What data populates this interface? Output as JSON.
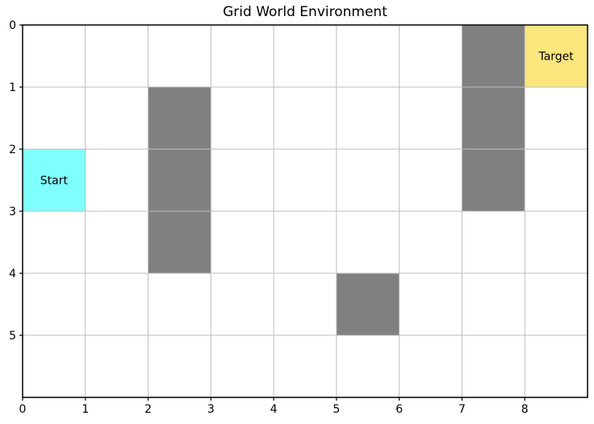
{
  "chart_data": {
    "type": "heatmap",
    "title": "Grid World Environment",
    "xlabel": "",
    "ylabel": "",
    "grid": {
      "cols": 9,
      "rows": 6
    },
    "xlim": [
      0,
      9
    ],
    "ylim": [
      6,
      0
    ],
    "y_axis_inverted": true,
    "grid_on": true,
    "legend": "none",
    "x_ticks": [
      "0",
      "1",
      "2",
      "3",
      "4",
      "5",
      "6",
      "7",
      "8"
    ],
    "y_ticks": [
      "0",
      "1",
      "2",
      "3",
      "4",
      "5"
    ],
    "cells": {
      "start": {
        "col": 0,
        "row": 2,
        "label": "Start",
        "color": "#80ffff"
      },
      "target": {
        "col": 8,
        "row": 0,
        "label": "Target",
        "color": "#fbe67e"
      },
      "obstacles": {
        "color": "#808080",
        "positions": [
          [
            2,
            1
          ],
          [
            2,
            2
          ],
          [
            2,
            3
          ],
          [
            5,
            4
          ],
          [
            7,
            0
          ],
          [
            7,
            1
          ],
          [
            7,
            2
          ]
        ]
      }
    },
    "colors": {
      "grid_line": "#bdbdbd",
      "spine": "#000000",
      "text": "#000000",
      "background": "#ffffff"
    }
  }
}
